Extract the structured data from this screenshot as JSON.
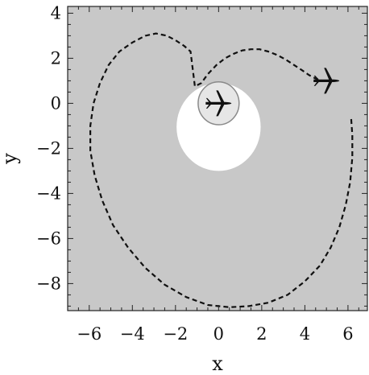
{
  "chart_data": {
    "type": "line",
    "title": "",
    "xlabel": "x",
    "ylabel": "y",
    "xlim": [
      -7.0,
      6.9
    ],
    "ylim": [
      -9.2,
      4.3
    ],
    "xticks": [
      -6,
      -4,
      -2,
      0,
      2,
      4,
      6
    ],
    "yticks": [
      -8,
      -6,
      -4,
      -2,
      0,
      2,
      4
    ],
    "xtick_labels": [
      "−6",
      "−4",
      "−2",
      "0",
      "2",
      "4",
      "6"
    ],
    "ytick_labels": [
      "−8",
      "−6",
      "−4",
      "−2",
      "0",
      "2",
      "4"
    ],
    "grid": false,
    "colors": {
      "region": "#c8c8c8",
      "safe_zone": "#ffffff",
      "path": "#111111",
      "aircraft": "#111111",
      "halo": "#e6e6e6"
    },
    "safe_zone": {
      "center": [
        0.0,
        -1.05
      ],
      "rx": 1.95,
      "ry": 1.95
    },
    "halo": {
      "center": [
        0.0,
        0.0
      ],
      "rx": 0.95,
      "ry": 0.95
    },
    "aircraft": [
      {
        "name": "aircraft-ownship",
        "position": [
          0.0,
          0.0
        ],
        "heading_deg": 0
      },
      {
        "name": "aircraft-intruder",
        "position": [
          5.0,
          1.0
        ],
        "heading_deg": 0
      }
    ],
    "series": [
      {
        "style": "dashed",
        "x": [
          6.15,
          6.2,
          6.2,
          6.1,
          5.9,
          5.6,
          5.2,
          4.7,
          4.0,
          3.2,
          2.3,
          1.4,
          0.5,
          -0.5,
          -1.5,
          -2.5,
          -3.4,
          -4.2,
          -4.9,
          -5.4,
          -5.75,
          -5.95,
          -5.95,
          -5.8,
          -5.5,
          -5.1,
          -4.6,
          -4.0,
          -3.4,
          -2.9,
          -2.4,
          -2.0,
          -1.6,
          -1.3,
          -1.1,
          -0.8,
          -0.5,
          -0.1,
          0.3,
          0.7,
          1.1,
          1.5,
          1.9,
          2.3,
          2.7,
          3.1,
          3.5,
          3.9,
          4.2,
          4.5,
          4.8
        ],
        "y": [
          -0.7,
          -1.4,
          -2.4,
          -3.5,
          -4.5,
          -5.5,
          -6.4,
          -7.2,
          -7.9,
          -8.5,
          -8.85,
          -9.0,
          -9.05,
          -8.95,
          -8.6,
          -8.05,
          -7.3,
          -6.4,
          -5.4,
          -4.3,
          -3.2,
          -2.1,
          -1.0,
          0.0,
          0.9,
          1.7,
          2.3,
          2.7,
          3.0,
          3.1,
          3.0,
          2.8,
          2.55,
          2.3,
          0.75,
          0.9,
          1.3,
          1.7,
          2.0,
          2.2,
          2.35,
          2.4,
          2.4,
          2.3,
          2.15,
          1.95,
          1.7,
          1.45,
          1.25,
          1.1,
          1.0
        ]
      }
    ]
  }
}
